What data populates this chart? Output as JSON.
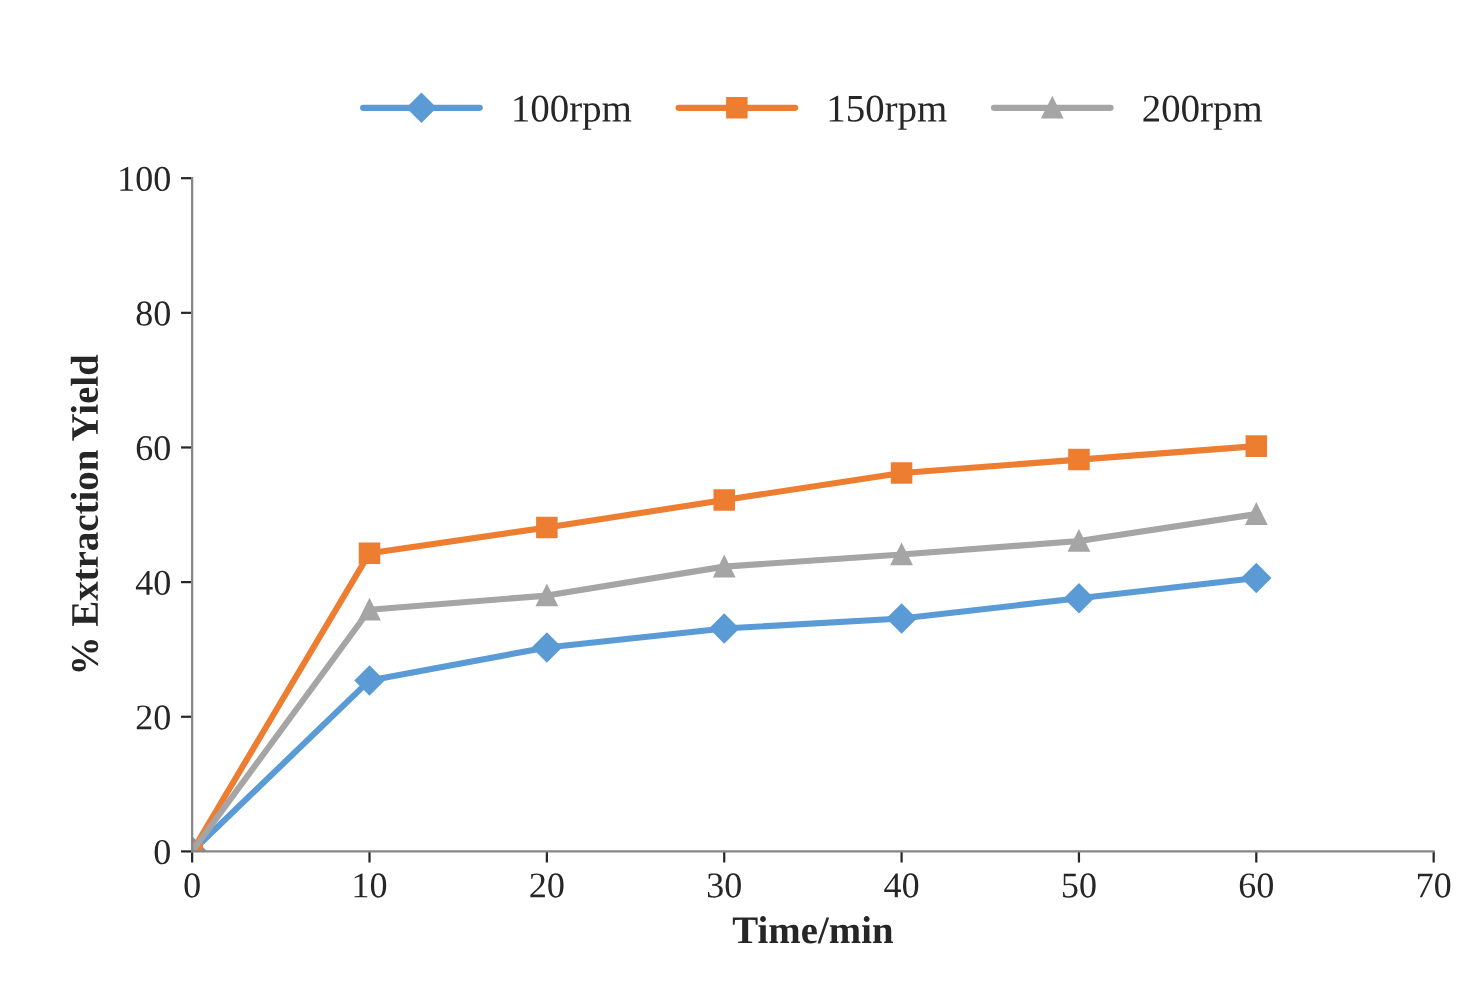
{
  "chart_data": {
    "type": "line",
    "xlabel": "Time/min",
    "ylabel": "% Extraction Yield",
    "x": [
      0,
      10,
      20,
      30,
      40,
      50,
      60
    ],
    "series": [
      {
        "name": "100rpm",
        "color": "#5b9bd5",
        "marker": "diamond",
        "values": [
          0,
          25.4,
          30.3,
          33.1,
          34.6,
          37.6,
          40.6
        ]
      },
      {
        "name": "150rpm",
        "color": "#ed7d31",
        "marker": "square",
        "values": [
          0,
          44.3,
          48.1,
          52.2,
          56.2,
          58.2,
          60.2
        ]
      },
      {
        "name": "200rpm",
        "color": "#a5a5a5",
        "marker": "triangle",
        "values": [
          0,
          35.9,
          38.0,
          42.3,
          44.1,
          46.1,
          50.1
        ]
      }
    ],
    "xlim": [
      0,
      70
    ],
    "xticks": [
      0,
      10,
      20,
      30,
      40,
      50,
      60,
      70
    ],
    "ylim": [
      0,
      100
    ],
    "yticks": [
      0,
      20,
      40,
      60,
      80,
      100
    ],
    "grid": false,
    "legend": "top",
    "line_style": "solid"
  }
}
